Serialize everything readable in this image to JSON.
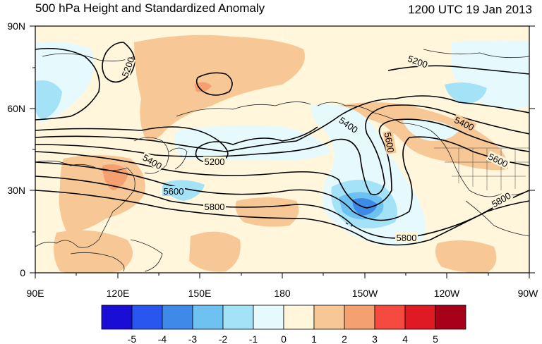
{
  "title": {
    "left": "500 hPa Height and Standardized Anomaly",
    "right": "1200 UTC 19 Jan 2013"
  },
  "map": {
    "lat_labels": [
      "90N",
      "60N",
      "30N",
      "0"
    ],
    "lon_labels": [
      "90E",
      "120E",
      "150E",
      "180",
      "150W",
      "120W",
      "90W"
    ],
    "contour_labels": [
      {
        "text": "5200",
        "id": "c5200-a"
      },
      {
        "text": "5200",
        "id": "c5200-b"
      },
      {
        "text": "5200",
        "id": "c5200-c"
      },
      {
        "text": "5400",
        "id": "c5400-a"
      },
      {
        "text": "5400",
        "id": "c5400-b"
      },
      {
        "text": "5400",
        "id": "c5400-c"
      },
      {
        "text": "5600",
        "id": "c5600-a"
      },
      {
        "text": "5600",
        "id": "c5600-b"
      },
      {
        "text": "5600",
        "id": "c5600-c"
      },
      {
        "text": "5800",
        "id": "c5800-a"
      },
      {
        "text": "5800",
        "id": "c5800-b"
      },
      {
        "text": "5800",
        "id": "c5800-c"
      }
    ]
  },
  "colorbar": {
    "labels": [
      "-5",
      "-4",
      "-3",
      "-2",
      "-1",
      "0",
      "1",
      "2",
      "3",
      "4",
      "5"
    ],
    "colors": [
      "#1a0ed6",
      "#2a56f0",
      "#3f8ae8",
      "#6ec2f2",
      "#a4e2f8",
      "#e6fafe",
      "#fff6dc",
      "#f7c896",
      "#f5a070",
      "#f54a40",
      "#e01a24",
      "#a8001a"
    ]
  },
  "shading_colors": {
    "neutral": "#fff6dc",
    "neg1": "#e6fafe",
    "neg2": "#a4e2f8",
    "neg3": "#6ec2f2",
    "neg4": "#3f8ae8",
    "pos1": "#f7c896",
    "pos2": "#f5a070"
  }
}
